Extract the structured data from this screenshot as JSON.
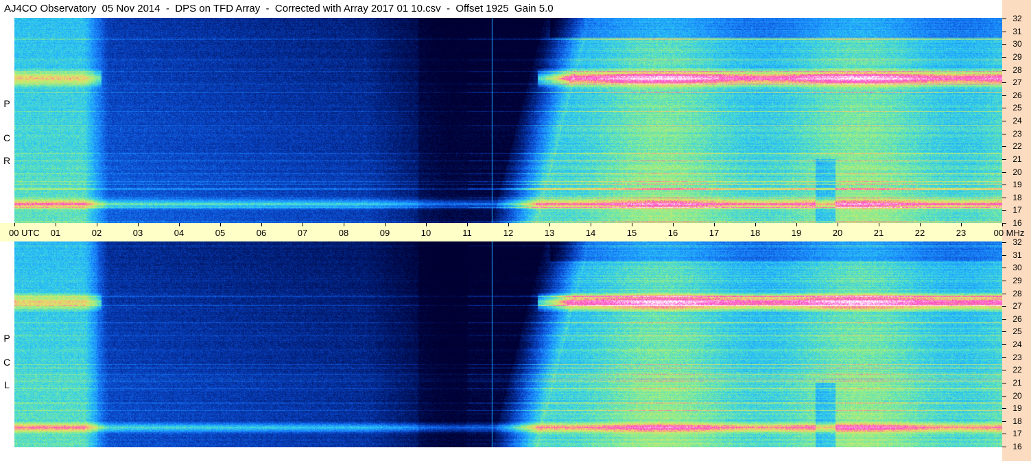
{
  "title": "AJ4CO Observatory  05 Nov 2014  -  DPS on TFD Array  -  Corrected with Array 2017 01 10.csv  -  Offset 1925  Gain 5.0",
  "chart_data": {
    "type": "heatmap",
    "title": "AJ4CO Observatory  05 Nov 2014  -  DPS on TFD Array  -  Corrected with Array 2017 01 10.csv  -  Offset 1925  Gain 5.0",
    "x_axis": {
      "label": "UTC",
      "ticks": [
        "00",
        "01",
        "02",
        "03",
        "04",
        "05",
        "06",
        "07",
        "08",
        "09",
        "10",
        "11",
        "12",
        "13",
        "14",
        "15",
        "16",
        "17",
        "18",
        "19",
        "20",
        "21",
        "22",
        "23",
        "00"
      ],
      "range_hours": [
        0,
        24
      ]
    },
    "y_axis": {
      "label": "MHz",
      "range": [
        16,
        32
      ],
      "ticks": [
        "32",
        "31",
        "30",
        "29",
        "28",
        "27",
        "26",
        "25",
        "24",
        "23",
        "22",
        "21",
        "20",
        "19",
        "18",
        "17",
        "16"
      ]
    },
    "panels": [
      {
        "polarization": "R C P",
        "letters": [
          "R",
          "C",
          "P"
        ]
      },
      {
        "polarization": "L C P",
        "letters": [
          "L",
          "C",
          "P"
        ]
      }
    ],
    "features": {
      "night_minimum_utc": [
        9.5,
        11.7
      ],
      "sunrise_transition_utc": [
        11.5,
        13.0
      ],
      "dark_start_utc": 2.0,
      "bright_band_mhz": 27.3,
      "low_band_mhz": 17.5,
      "afternoon_dip_utc": 19.7,
      "vertical_line_utc": 11.6
    },
    "colormap": [
      "#000033",
      "#001a6e",
      "#0a45c8",
      "#1a88ff",
      "#2ecdf0",
      "#8ff08a",
      "#f0e060",
      "#ff40c8",
      "#ffffff"
    ]
  }
}
